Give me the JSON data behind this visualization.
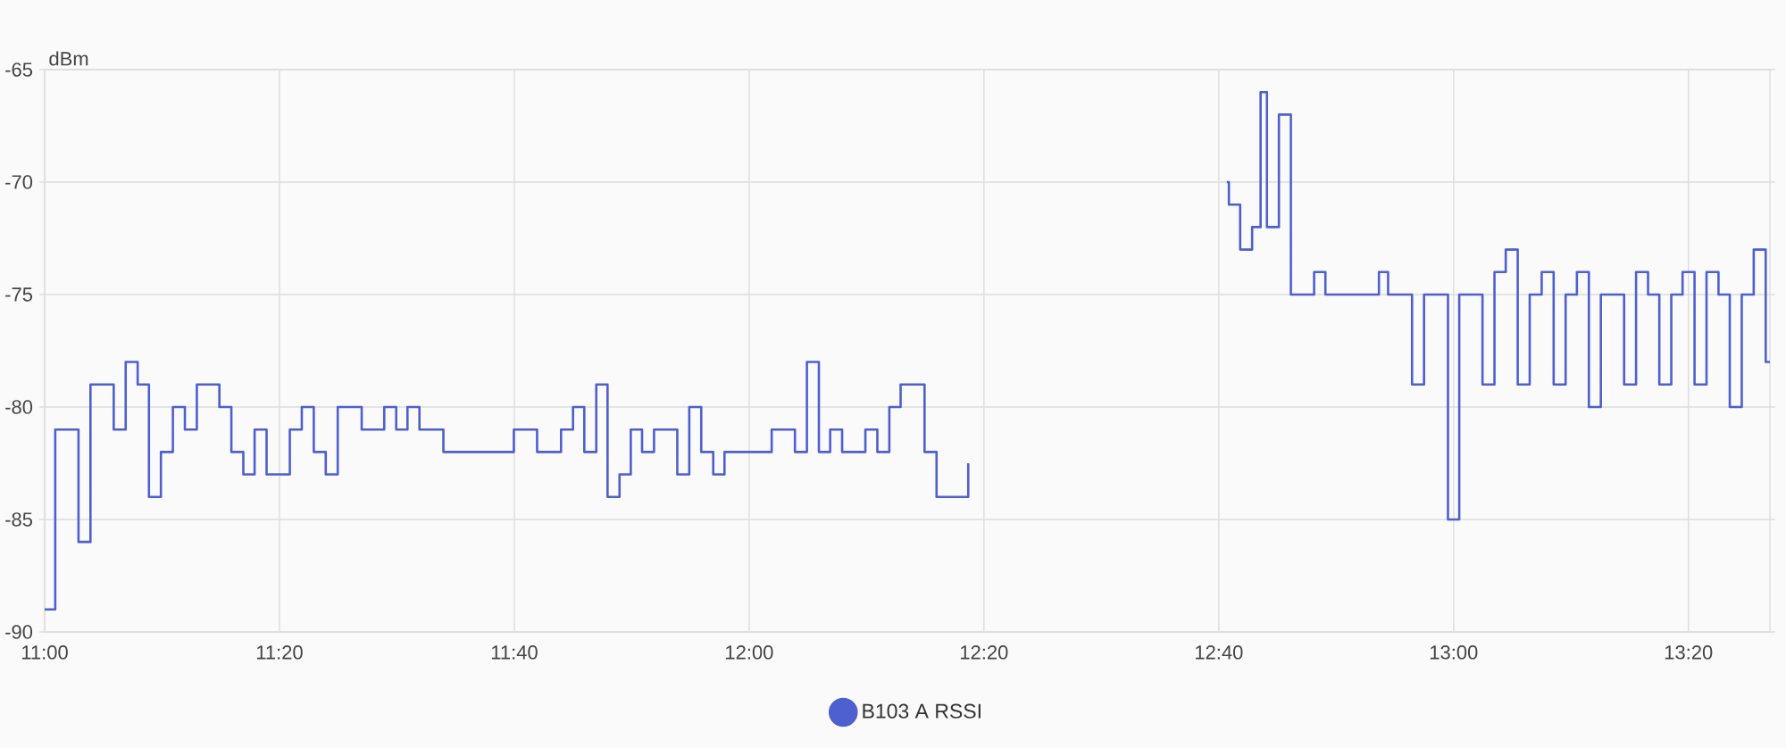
{
  "chart_data": {
    "type": "step",
    "ylabel": "dBm",
    "x": [
      11.0,
      11.015,
      11.048,
      11.065,
      11.098,
      11.115,
      11.132,
      11.148,
      11.165,
      11.182,
      11.199,
      11.216,
      11.248,
      11.265,
      11.282,
      11.298,
      11.315,
      11.348,
      11.365,
      11.382,
      11.399,
      11.416,
      11.45,
      11.482,
      11.499,
      11.515,
      11.532,
      11.566,
      11.666,
      11.699,
      11.733,
      11.75,
      11.766,
      11.783,
      11.799,
      11.816,
      11.832,
      11.848,
      11.865,
      11.898,
      11.915,
      11.932,
      11.949,
      11.965,
      12.032,
      12.065,
      12.082,
      12.099,
      12.115,
      12.132,
      12.165,
      12.182,
      12.199,
      12.215,
      12.249,
      12.266,
      12.311,
      12.5,
      12.678,
      12.681,
      12.697,
      12.714,
      12.726,
      12.735,
      12.752,
      12.769,
      12.802,
      12.818,
      12.894,
      12.907,
      12.941,
      12.958,
      12.992,
      13.008,
      13.041,
      13.058,
      13.074,
      13.091,
      13.108,
      13.125,
      13.142,
      13.159,
      13.175,
      13.192,
      13.209,
      13.242,
      13.259,
      13.276,
      13.292,
      13.309,
      13.325,
      13.342,
      13.359,
      13.376,
      13.392,
      13.409,
      13.426,
      13.443,
      13.449
    ],
    "series": [
      {
        "name": "B103 A RSSI",
        "color": "#4e5fd0",
        "values": [
          -89,
          -81,
          -86,
          -79,
          -81,
          -78,
          -79,
          -84,
          -82,
          -80,
          -81,
          -79,
          -80,
          -82,
          -83,
          -81,
          -83,
          -81,
          -80,
          -82,
          -83,
          -80,
          -81,
          -80,
          -81,
          -80,
          -81,
          -82,
          -81,
          -82,
          -81,
          -80,
          -82,
          -79,
          -84,
          -83,
          -81,
          -82,
          -81,
          -83,
          -80,
          -82,
          -83,
          -82,
          -81,
          -82,
          -78,
          -82,
          -81,
          -82,
          -81,
          -82,
          -80,
          -79,
          -82,
          -84,
          -82.5,
          null,
          -70,
          -71,
          -73,
          -72,
          -66,
          -72,
          -67,
          -75,
          -74,
          -75,
          -74,
          -75,
          -79,
          -75,
          -85,
          -75,
          -79,
          -74,
          -73,
          -79,
          -75,
          -74,
          -79,
          -75,
          -74,
          -80,
          -75,
          -79,
          -74,
          -75,
          -79,
          -75,
          -74,
          -79,
          -74,
          -75,
          -80,
          -75,
          -73,
          -78,
          -78
        ]
      }
    ],
    "xlim": [
      11,
      13.449
    ],
    "ylim": [
      -90,
      -65
    ],
    "xticks": [
      {
        "value": 11,
        "label": "11:00"
      },
      {
        "value": 11.3333,
        "label": "11:20"
      },
      {
        "value": 11.6667,
        "label": "11:40"
      },
      {
        "value": 12,
        "label": "12:00"
      },
      {
        "value": 12.3333,
        "label": "12:20"
      },
      {
        "value": 12.6667,
        "label": "12:40"
      },
      {
        "value": 13,
        "label": "13:00"
      },
      {
        "value": 13.3333,
        "label": "13:20"
      }
    ],
    "yticks": [
      -90,
      -85,
      -80,
      -75,
      -70,
      -65
    ],
    "grid": true,
    "legend": "bottom",
    "marker": "none",
    "line_style": "solid"
  }
}
